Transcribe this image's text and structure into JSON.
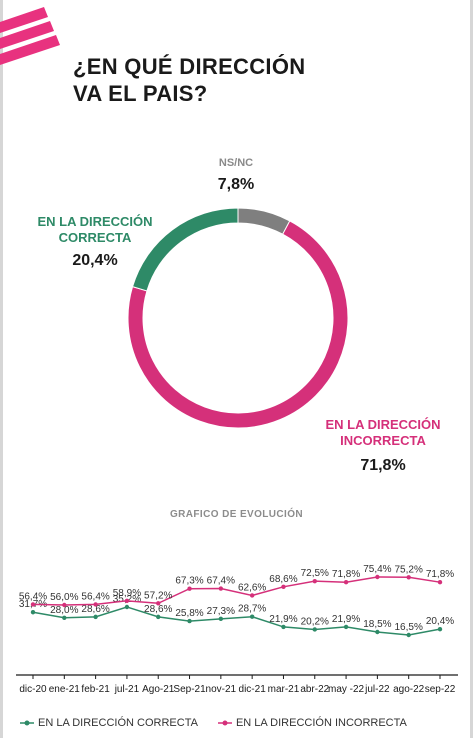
{
  "page": {
    "title_line1": "¿EN QUÉ DIRECCIÓN",
    "title_line2": "VA EL PAIS?"
  },
  "colors": {
    "correct": "#2e8a67",
    "incorrect": "#d5307a",
    "nsnc": "#7f7f7f",
    "brand": "#e8327f"
  },
  "donut": {
    "segments": [
      {
        "key": "nsnc",
        "name": "NS/NC",
        "value": 7.8,
        "label": "7,8%"
      },
      {
        "key": "incorrect",
        "name_line1": "EN LA DIRECCIÓN",
        "name_line2": "INCORRECTA",
        "value": 71.8,
        "label": "71,8%"
      },
      {
        "key": "correct",
        "name_line1": "EN LA DIRECCIÓN",
        "name_line2": "CORRECTA",
        "value": 20.4,
        "label": "20,4%"
      }
    ]
  },
  "chart_data": [
    {
      "type": "pie",
      "categories": [
        "NS/NC",
        "EN LA DIRECCIÓN INCORRECTA",
        "EN LA DIRECCIÓN CORRECTA"
      ],
      "values": [
        7.8,
        71.8,
        20.4
      ],
      "title": "¿EN QUÉ DIRECCIÓN VA EL PAIS?"
    },
    {
      "type": "line",
      "title": "GRAFICO DE EVOLUCIÓN",
      "categories": [
        "dic-20",
        "ene-21",
        "feb-21",
        "jul-21",
        "Ago-21",
        "Sep-21",
        "nov-21",
        "dic-21",
        "mar-21",
        "abr-22",
        "may -22",
        "jul-22",
        "ago-22",
        "sep-22"
      ],
      "series": [
        {
          "name": "EN LA DIRECCIÓN CORRECTA",
          "values": [
            31.7,
            28.0,
            28.6,
            35.2,
            28.6,
            25.8,
            27.3,
            28.7,
            21.9,
            20.2,
            21.9,
            18.5,
            16.5,
            20.4
          ],
          "labels": [
            "31,7%",
            "28,0%",
            "28,6%",
            "35,2%",
            "28,6%",
            "25,8%",
            "27,3%",
            "28,7%",
            "21,9%",
            "20,2%",
            "21,9%",
            "18,5%",
            "16,5%",
            "20,4%"
          ]
        },
        {
          "name": "EN LA DIRECCIÓN INCORRECTA",
          "values": [
            56.4,
            56.0,
            56.4,
            58.9,
            57.2,
            67.3,
            67.4,
            62.6,
            68.6,
            72.5,
            71.8,
            75.4,
            75.2,
            71.8
          ],
          "labels": [
            "56,4%",
            "56,0%",
            "56,4%",
            "58,9%",
            "57,2%",
            "67,3%",
            "67,4%",
            "62,6%",
            "68,6%",
            "72,5%",
            "71,8%",
            "75,4%",
            "75,2%",
            "71,8%"
          ]
        }
      ],
      "legend": "bottom"
    }
  ]
}
